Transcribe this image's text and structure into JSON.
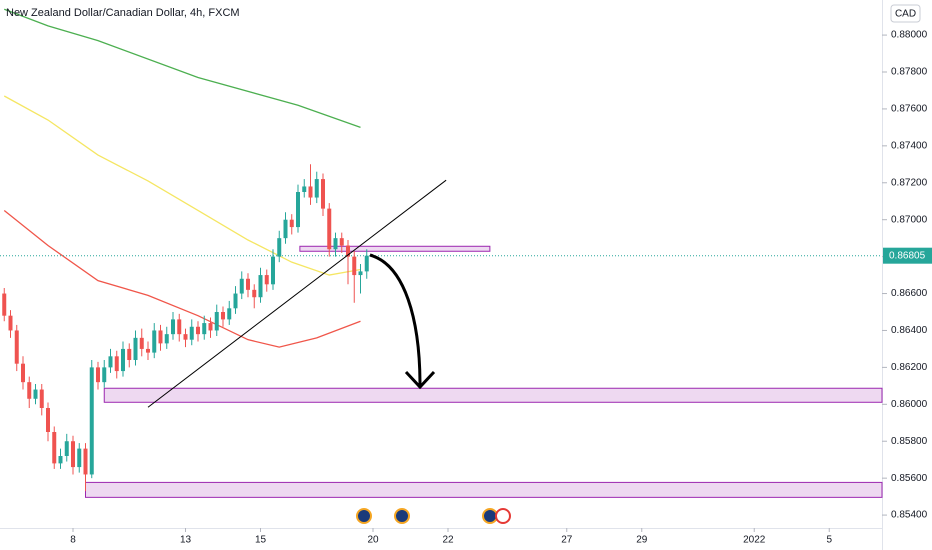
{
  "chart_data": {
    "type": "candlestick",
    "title": "New Zealand Dollar/Canadian Dollar, 4h, FXCM",
    "currency": "CAD",
    "up_color": "#26a69a",
    "down_color": "#ef5350",
    "x": [
      -11,
      -10,
      -9,
      -8,
      -7,
      -6,
      -5,
      -4,
      -3,
      -2,
      -1,
      0,
      1,
      2,
      3,
      4,
      5,
      6,
      7,
      8,
      9,
      10,
      11,
      12,
      13,
      14,
      15,
      16,
      17,
      18,
      19,
      20,
      21,
      22,
      23,
      24,
      25,
      26,
      27,
      28,
      29,
      30,
      31,
      32,
      33,
      34,
      35,
      36,
      37,
      38,
      39,
      40,
      41,
      42,
      43,
      44,
      45,
      46,
      47
    ],
    "open": [
      0.866,
      0.8648,
      0.864,
      0.8622,
      0.8612,
      0.8603,
      0.8608,
      0.8598,
      0.8585,
      0.8568,
      0.8572,
      0.858,
      0.8566,
      0.8576,
      0.8562,
      0.862,
      0.8612,
      0.862,
      0.8626,
      0.8618,
      0.863,
      0.8624,
      0.8636,
      0.863,
      0.8628,
      0.864,
      0.8633,
      0.8638,
      0.8646,
      0.8638,
      0.8635,
      0.8642,
      0.8638,
      0.8644,
      0.864,
      0.865,
      0.8646,
      0.8652,
      0.866,
      0.8668,
      0.8662,
      0.8658,
      0.867,
      0.8665,
      0.868,
      0.869,
      0.87,
      0.8696,
      0.8715,
      0.8718,
      0.8712,
      0.8722,
      0.8706,
      0.8684,
      0.869,
      0.8686,
      0.868,
      0.867,
      0.8672
    ],
    "high": [
      0.8663,
      0.8651,
      0.8643,
      0.8626,
      0.8615,
      0.8611,
      0.8611,
      0.8601,
      0.8588,
      0.8576,
      0.8584,
      0.8583,
      0.8579,
      0.8579,
      0.8624,
      0.8623,
      0.8624,
      0.863,
      0.8629,
      0.8634,
      0.8633,
      0.864,
      0.8641,
      0.8634,
      0.8644,
      0.8643,
      0.8642,
      0.865,
      0.8649,
      0.8641,
      0.8646,
      0.8645,
      0.8648,
      0.8647,
      0.8654,
      0.8653,
      0.8656,
      0.8664,
      0.8672,
      0.8671,
      0.8665,
      0.8674,
      0.8673,
      0.8684,
      0.8694,
      0.8704,
      0.8703,
      0.8719,
      0.8722,
      0.873,
      0.8726,
      0.8725,
      0.8709,
      0.8693,
      0.8693,
      0.8689,
      0.8683,
      0.8676,
      0.8684
    ],
    "low": [
      0.8645,
      0.8636,
      0.8618,
      0.8608,
      0.8598,
      0.86,
      0.8594,
      0.858,
      0.8565,
      0.8565,
      0.8569,
      0.8562,
      0.8563,
      0.8553,
      0.856,
      0.8608,
      0.8609,
      0.8617,
      0.8614,
      0.8615,
      0.862,
      0.8621,
      0.8626,
      0.8624,
      0.8625,
      0.8629,
      0.863,
      0.8635,
      0.8634,
      0.8631,
      0.8632,
      0.8634,
      0.8635,
      0.8636,
      0.8637,
      0.8642,
      0.8643,
      0.8649,
      0.8657,
      0.8658,
      0.8652,
      0.8655,
      0.8661,
      0.8662,
      0.8677,
      0.8687,
      0.8692,
      0.8693,
      0.8712,
      0.8708,
      0.8709,
      0.8702,
      0.868,
      0.868,
      0.8682,
      0.8665,
      0.8655,
      0.866,
      0.8668
    ],
    "close": [
      0.8648,
      0.864,
      0.8622,
      0.8612,
      0.8603,
      0.8608,
      0.8598,
      0.8585,
      0.8568,
      0.8572,
      0.858,
      0.8566,
      0.8576,
      0.8562,
      0.862,
      0.8612,
      0.862,
      0.8626,
      0.8618,
      0.863,
      0.8624,
      0.8636,
      0.863,
      0.8628,
      0.864,
      0.8633,
      0.8638,
      0.8646,
      0.8638,
      0.8635,
      0.8642,
      0.8638,
      0.8644,
      0.864,
      0.865,
      0.8646,
      0.8652,
      0.866,
      0.8668,
      0.8662,
      0.8658,
      0.867,
      0.8665,
      0.868,
      0.869,
      0.87,
      0.8696,
      0.8715,
      0.8718,
      0.8712,
      0.8722,
      0.8706,
      0.8684,
      0.869,
      0.8686,
      0.868,
      0.867,
      0.8672,
      0.86805
    ],
    "moving_averages": [
      {
        "color": "#4caf50",
        "x": [
          -11,
          -4,
          4,
          20,
          36,
          46
        ],
        "values": [
          0.8814,
          0.8805,
          0.8797,
          0.8777,
          0.8762,
          0.875
        ]
      },
      {
        "color": "#f5e663",
        "x": [
          -11,
          -4,
          4,
          12,
          20,
          28,
          35,
          41,
          46
        ],
        "values": [
          0.8767,
          0.8754,
          0.8735,
          0.8721,
          0.8705,
          0.8689,
          0.8677,
          0.867,
          0.8673
        ]
      },
      {
        "color": "#f0564a",
        "x": [
          -11,
          -4,
          4,
          12,
          20,
          28,
          33,
          39,
          46
        ],
        "values": [
          0.8705,
          0.8686,
          0.8667,
          0.8659,
          0.8648,
          0.8635,
          0.8631,
          0.8636,
          0.8645
        ]
      }
    ],
    "zones": [
      {
        "low": 0.86829,
        "high": 0.86856,
        "x_start": 36.3,
        "x_end": 66.7
      },
      {
        "low": 0.86011,
        "high": 0.86087,
        "x_start": 5
      },
      {
        "low": 0.85496,
        "high": 0.85577,
        "x_start": 2
      }
    ],
    "trend_line": {
      "x": [
        12,
        59.7
      ],
      "values": [
        0.85984,
        0.87214
      ]
    },
    "xlim": [
      -11.68,
      129.44
    ],
    "ylim": [
      0.8533,
      0.8819
    ],
    "xticks": [
      {
        "value": 0,
        "label": "8"
      },
      {
        "value": 18,
        "label": "13"
      },
      {
        "value": 30,
        "label": "15"
      },
      {
        "value": 48,
        "label": "20"
      },
      {
        "value": 60,
        "label": "22"
      },
      {
        "value": 79,
        "label": "27"
      },
      {
        "value": 91,
        "label": "29"
      },
      {
        "value": 109,
        "label": "2022"
      },
      {
        "value": 121,
        "label": "5"
      }
    ],
    "yticks": [
      {
        "value": 0.854,
        "label": "0.85400"
      },
      {
        "value": 0.856,
        "label": "0.85600"
      },
      {
        "value": 0.858,
        "label": "0.85800"
      },
      {
        "value": 0.86,
        "label": "0.86000"
      },
      {
        "value": 0.862,
        "label": "0.86200"
      },
      {
        "value": 0.864,
        "label": "0.86400"
      },
      {
        "value": 0.866,
        "label": "0.86600"
      },
      {
        "value": 0.868,
        "label": "0.86800"
      },
      {
        "value": 0.87,
        "label": "0.87000"
      },
      {
        "value": 0.872,
        "label": "0.87200"
      },
      {
        "value": 0.874,
        "label": "0.87400"
      },
      {
        "value": 0.876,
        "label": "0.87600"
      },
      {
        "value": 0.878,
        "label": "0.87800"
      },
      {
        "value": 0.88,
        "label": "0.88000"
      }
    ]
  }
}
